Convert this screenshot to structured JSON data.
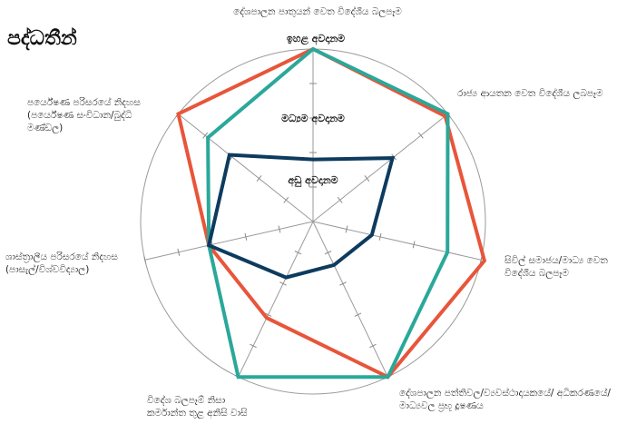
{
  "title": "පද්ධතීන්",
  "chart_data": {
    "type": "radar",
    "title": "පද්ධතීන්",
    "axes": [
      "දේශපාලන පාතුයන් වෙත විදේශීය බලපෑම",
      "රාජ්‍ය ආයතන වෙත විදේශීය ලබපෑම",
      "සිවිල් සමාජය/මාධ්‍ය වෙත විදේශීය බලපෑම",
      "දේශපාලන පත්තිවල/ව්‍යවස්ථාදායකයේ/ අධිකරණයේ/මාධ්‍යවල ප්‍රභූ දූෂණය",
      "විදේශ බලපෑම් නිසා කර්මාන්ත තුළ අනිසි වාසි",
      "ශාස්ත්‍රාලීය පරිසරයේ නිදහස (පාසැල්/විශ්වවිද්‍යාල)",
      "පර්යේෂණ පරිසරයේ නිදහස (පර්යේෂණ සංවිධාන/බුද්ධි මණ්ඩල)"
    ],
    "level_labels": [
      "ඉහළ අවදානම",
      "මධ්‍යම අවදානම",
      "අඩු අවදානම"
    ],
    "range": [
      0,
      5
    ],
    "ticks_per_axis": 5,
    "series": [
      {
        "color": "#e8553a",
        "values": [
          5,
          4.9,
          5.1,
          5,
          3.1,
          3.1,
          5
        ]
      },
      {
        "color": "#2aa89a",
        "values": [
          5,
          5,
          4,
          5,
          5,
          3.1,
          3.9
        ]
      },
      {
        "color": "#0d3b5e",
        "values": [
          1.8,
          2.95,
          1.75,
          1.4,
          1.8,
          3.1,
          3.1
        ]
      }
    ],
    "grid": true
  }
}
